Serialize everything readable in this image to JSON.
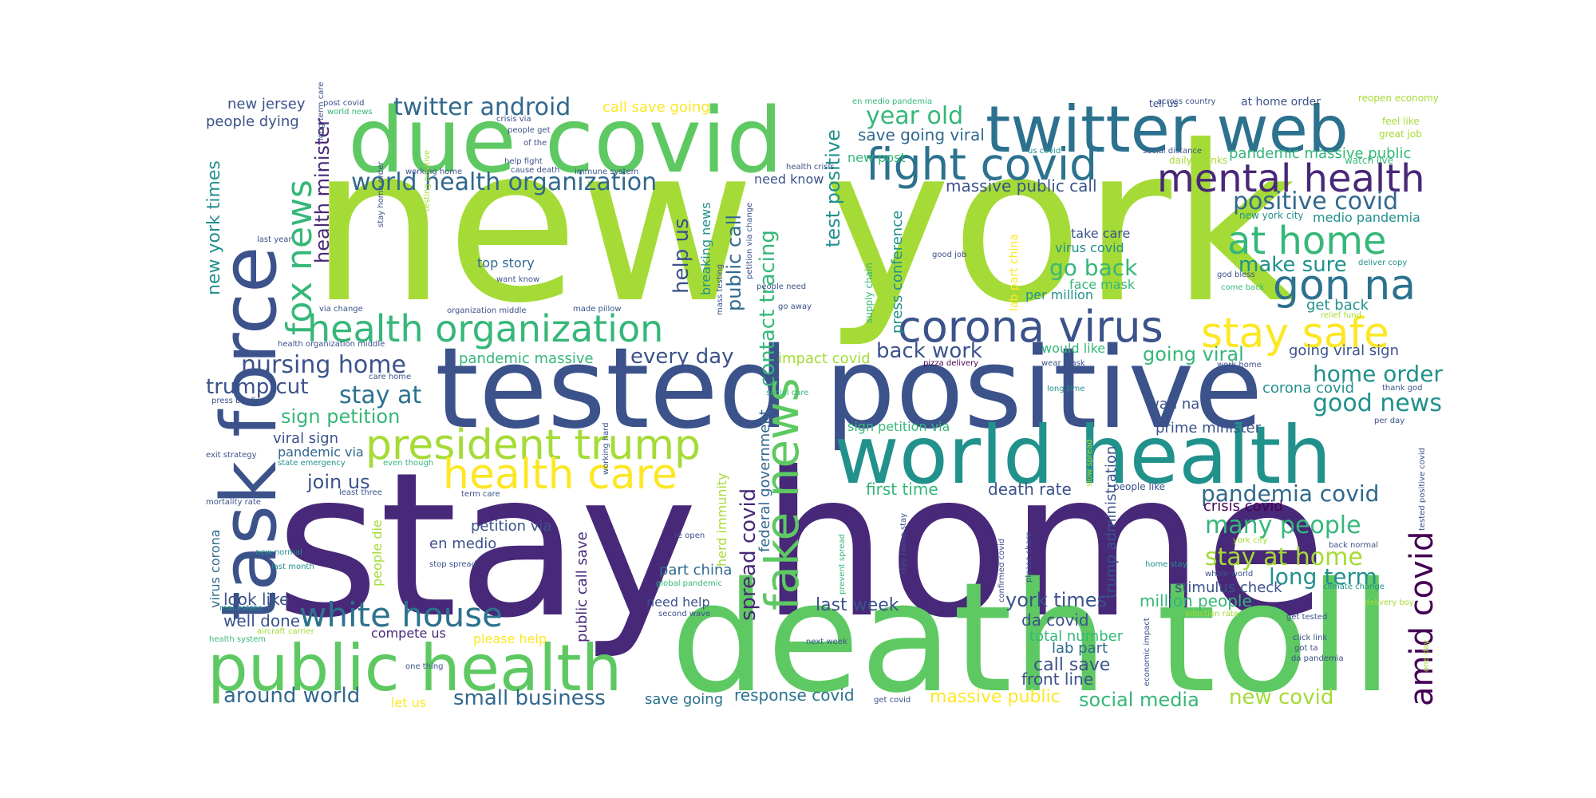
{
  "words": [
    {
      "text": "new york",
      "color": "#a5db36"
    },
    {
      "text": "stay home",
      "color": "#482878"
    },
    {
      "text": "death toll",
      "color": "#5ec962"
    },
    {
      "text": "tested positive",
      "color": "#3b528b"
    },
    {
      "text": "due covid",
      "color": "#5ec962"
    },
    {
      "text": "task force",
      "color": "#3b528b"
    },
    {
      "text": "twitter web",
      "color": "#2c728e"
    },
    {
      "text": "world health",
      "color": "#21918c"
    },
    {
      "text": "public health",
      "color": "#5ec962"
    },
    {
      "text": "fight covid",
      "color": "#2c728e"
    },
    {
      "text": "mental health",
      "color": "#482878"
    },
    {
      "text": "health organization",
      "color": "#35b779"
    },
    {
      "text": "corona virus",
      "color": "#3b528b"
    },
    {
      "text": "president trump",
      "color": "#a5db36"
    },
    {
      "text": "health care",
      "color": "#fde725"
    },
    {
      "text": "fake news",
      "color": "#5ec962"
    },
    {
      "text": "fox news",
      "color": "#35b779"
    },
    {
      "text": "stay safe",
      "color": "#fde725"
    },
    {
      "text": "gon na",
      "color": "#2c728e"
    },
    {
      "text": "at home",
      "color": "#35b779"
    },
    {
      "text": "white house",
      "color": "#2c728e"
    },
    {
      "text": "amid covid",
      "color": "#440154"
    },
    {
      "text": "world health organization",
      "color": "#31688e"
    },
    {
      "text": "positive covid",
      "color": "#31688e"
    },
    {
      "text": "twitter android",
      "color": "#31688e"
    },
    {
      "text": "nursing home",
      "color": "#3b528b"
    },
    {
      "text": "trump cut",
      "color": "#3b528b"
    },
    {
      "text": "stay at",
      "color": "#2c728e"
    },
    {
      "text": "sign petition",
      "color": "#35b779"
    },
    {
      "text": "year old",
      "color": "#35b779"
    },
    {
      "text": "pandemia covid",
      "color": "#31688e"
    },
    {
      "text": "many people",
      "color": "#35b779"
    },
    {
      "text": "stay at home",
      "color": "#a5db36"
    },
    {
      "text": "good news",
      "color": "#21918c"
    },
    {
      "text": "home order",
      "color": "#21918c"
    },
    {
      "text": "long term",
      "color": "#21918c"
    },
    {
      "text": "around world",
      "color": "#31688e"
    },
    {
      "text": "small business",
      "color": "#31688e"
    },
    {
      "text": "social media",
      "color": "#35b779"
    },
    {
      "text": "new covid",
      "color": "#a5db36"
    },
    {
      "text": "spread covid",
      "color": "#482878"
    },
    {
      "text": "contact tracing",
      "color": "#35b779"
    },
    {
      "text": "help us",
      "color": "#3b528b"
    },
    {
      "text": "public call",
      "color": "#31688e"
    },
    {
      "text": "health minister",
      "color": "#482878"
    },
    {
      "text": "new york times",
      "color": "#21918c"
    },
    {
      "text": "back work",
      "color": "#3b528b"
    },
    {
      "text": "make sure",
      "color": "#21918c"
    },
    {
      "text": "go back",
      "color": "#35b779"
    },
    {
      "text": "every day",
      "color": "#3b528b"
    },
    {
      "text": "join us",
      "color": "#3b528b"
    },
    {
      "text": "york times",
      "color": "#3b528b"
    },
    {
      "text": "last week",
      "color": "#3b528b"
    },
    {
      "text": "going viral",
      "color": "#35b779"
    },
    {
      "text": "test positive",
      "color": "#21918c"
    },
    {
      "text": "well done",
      "color": "#3b528b"
    },
    {
      "text": "look like",
      "color": "#3b528b"
    },
    {
      "text": "da covid",
      "color": "#3b528b"
    },
    {
      "text": "call save",
      "color": "#3b528b"
    },
    {
      "text": "front line",
      "color": "#3b528b"
    },
    {
      "text": "massive public",
      "color": "#fde725"
    },
    {
      "text": "response covid",
      "color": "#2c728e"
    },
    {
      "text": "save going",
      "color": "#2c728e"
    },
    {
      "text": "first time",
      "color": "#35b779"
    },
    {
      "text": "death rate",
      "color": "#3b528b"
    },
    {
      "text": "million people",
      "color": "#35b779"
    },
    {
      "text": "total number",
      "color": "#35b779"
    },
    {
      "text": "lab part",
      "color": "#31688e"
    },
    {
      "text": "crisis covid",
      "color": "#440154"
    },
    {
      "text": "stimulus check",
      "color": "#3b528b"
    },
    {
      "text": "wan na",
      "color": "#3b528b"
    },
    {
      "text": "corona covid",
      "color": "#21918c"
    },
    {
      "text": "prime minister",
      "color": "#3b528b"
    },
    {
      "text": "going viral sign",
      "color": "#3b528b"
    },
    {
      "text": "get back",
      "color": "#21918c"
    },
    {
      "text": "per million",
      "color": "#21918c"
    },
    {
      "text": "face mask",
      "color": "#35b779"
    },
    {
      "text": "virus covid",
      "color": "#21918c"
    },
    {
      "text": "take care",
      "color": "#3b528b"
    },
    {
      "text": "would like",
      "color": "#35b779"
    },
    {
      "text": "massive public call",
      "color": "#3b528b"
    },
    {
      "text": "save going viral",
      "color": "#31688e"
    },
    {
      "text": "need know",
      "color": "#3b528b"
    },
    {
      "text": "new post",
      "color": "#35b779"
    },
    {
      "text": "top story",
      "color": "#31688e"
    },
    {
      "text": "pandemic massive",
      "color": "#35b779"
    },
    {
      "text": "impact covid",
      "color": "#a5db36"
    },
    {
      "text": "people dying",
      "color": "#3b528b"
    },
    {
      "text": "new jersey",
      "color": "#3b528b"
    },
    {
      "text": "call save going",
      "color": "#fde725"
    },
    {
      "text": "pandemic massive public",
      "color": "#35b779"
    },
    {
      "text": "medio pandemia",
      "color": "#21918c"
    },
    {
      "text": "petition via",
      "color": "#3b528b"
    },
    {
      "text": "en medio",
      "color": "#3b528b"
    },
    {
      "text": "viral sign",
      "color": "#3b528b"
    },
    {
      "text": "pandemic via",
      "color": "#31688e"
    },
    {
      "text": "part china",
      "color": "#31688e"
    },
    {
      "text": "need help",
      "color": "#3b528b"
    },
    {
      "text": "compete us",
      "color": "#482878"
    },
    {
      "text": "please help",
      "color": "#fde725"
    },
    {
      "text": "let us",
      "color": "#fde725"
    },
    {
      "text": "virus corona",
      "color": "#31688e"
    },
    {
      "text": "people die",
      "color": "#a5db36"
    },
    {
      "text": "public call save",
      "color": "#482878"
    },
    {
      "text": "federal government",
      "color": "#31688e"
    },
    {
      "text": "herd immunity",
      "color": "#a5db36"
    },
    {
      "text": "breaking news",
      "color": "#21918c"
    },
    {
      "text": "press conference",
      "color": "#21918c"
    },
    {
      "text": "trump administration",
      "color": "#3b528b"
    },
    {
      "text": "lab part china",
      "color": "#fde725"
    },
    {
      "text": "supply chain",
      "color": "#35b779"
    },
    {
      "text": "tell us",
      "color": "#3b528b"
    },
    {
      "text": "at home order",
      "color": "#3b528b"
    },
    {
      "text": "reopen economy",
      "color": "#a5db36"
    },
    {
      "text": "feel like",
      "color": "#a5db36"
    },
    {
      "text": "great job",
      "color": "#a5db36"
    },
    {
      "text": "watch live",
      "color": "#35b779"
    },
    {
      "text": "new york city",
      "color": "#21918c"
    },
    {
      "text": "across country",
      "color": "#3b528b"
    },
    {
      "text": "social distance",
      "color": "#3b528b"
    },
    {
      "text": "daily thanks",
      "color": "#a5db36"
    },
    {
      "text": "us covid",
      "color": "#21918c"
    },
    {
      "text": "en medio pandemia",
      "color": "#35b779"
    },
    {
      "text": "health crisis",
      "color": "#3b528b"
    },
    {
      "text": "post covid",
      "color": "#3b528b"
    },
    {
      "text": "world news",
      "color": "#35b779"
    },
    {
      "text": "long term care",
      "color": "#3b528b"
    },
    {
      "text": "crisis via",
      "color": "#3b528b"
    },
    {
      "text": "people get",
      "color": "#3b528b"
    },
    {
      "text": "of the",
      "color": "#3b528b"
    },
    {
      "text": "help fight",
      "color": "#3b528b"
    },
    {
      "text": "cause death",
      "color": "#3b528b"
    },
    {
      "text": "immune system",
      "color": "#3b528b"
    },
    {
      "text": "working home",
      "color": "#3b528b"
    },
    {
      "text": "last year",
      "color": "#3b528b"
    },
    {
      "text": "stay home order",
      "color": "#3b528b"
    },
    {
      "text": "testing positive",
      "color": "#a5db36"
    },
    {
      "text": "want know",
      "color": "#3b528b"
    },
    {
      "text": "via change",
      "color": "#3b528b"
    },
    {
      "text": "organization middle",
      "color": "#3b528b"
    },
    {
      "text": "made pillow",
      "color": "#3b528b"
    },
    {
      "text": "health organization middle",
      "color": "#3b528b"
    },
    {
      "text": "care home",
      "color": "#3b528b"
    },
    {
      "text": "press briefing",
      "color": "#3b528b"
    },
    {
      "text": "exit strategy",
      "color": "#3b528b"
    },
    {
      "text": "state emergency",
      "color": "#21918c"
    },
    {
      "text": "even though",
      "color": "#35b779"
    },
    {
      "text": "least three",
      "color": "#3b528b"
    },
    {
      "text": "term care",
      "color": "#3b528b"
    },
    {
      "text": "mortality rate",
      "color": "#3b528b"
    },
    {
      "text": "new normal",
      "color": "#21918c"
    },
    {
      "text": "last month",
      "color": "#21918c"
    },
    {
      "text": "stop spread",
      "color": "#3b528b"
    },
    {
      "text": "global pandemic",
      "color": "#35b779"
    },
    {
      "text": "second wave",
      "color": "#3b528b"
    },
    {
      "text": "real estate",
      "color": "#21918c"
    },
    {
      "text": "health system",
      "color": "#35b779"
    },
    {
      "text": "aircraft carrier",
      "color": "#a5db36"
    },
    {
      "text": "one thing",
      "color": "#3b528b"
    },
    {
      "text": "re open",
      "color": "#3b528b"
    },
    {
      "text": "working hard",
      "color": "#3b528b"
    },
    {
      "text": "mass testing",
      "color": "#3b528b"
    },
    {
      "text": "petition via change",
      "color": "#3b528b"
    },
    {
      "text": "people need",
      "color": "#3b528b"
    },
    {
      "text": "go away",
      "color": "#3b528b"
    },
    {
      "text": "social care",
      "color": "#35b779"
    },
    {
      "text": "pizza delivery",
      "color": "#440154"
    },
    {
      "text": "wear mask",
      "color": "#3b528b"
    },
    {
      "text": "work home",
      "color": "#3b528b"
    },
    {
      "text": "long time",
      "color": "#21918c"
    },
    {
      "text": "sign petition via",
      "color": "#35b779"
    },
    {
      "text": "good job",
      "color": "#3b528b"
    },
    {
      "text": "god bless",
      "color": "#3b528b"
    },
    {
      "text": "deliver copy",
      "color": "#21918c"
    },
    {
      "text": "come back",
      "color": "#35b779"
    },
    {
      "text": "relief fund",
      "color": "#a5db36"
    },
    {
      "text": "thank god",
      "color": "#3b528b"
    },
    {
      "text": "per day",
      "color": "#3b528b"
    },
    {
      "text": "tested positive covid",
      "color": "#3b528b"
    },
    {
      "text": "slow spread",
      "color": "#a5db36"
    },
    {
      "text": "people like",
      "color": "#3b528b"
    },
    {
      "text": "york city",
      "color": "#a5db36"
    },
    {
      "text": "back normal",
      "color": "#3b528b"
    },
    {
      "text": "home stay",
      "color": "#21918c"
    },
    {
      "text": "whole world",
      "color": "#3b528b"
    },
    {
      "text": "climate change",
      "color": "#21918c"
    },
    {
      "text": "delivery boy",
      "color": "#a5db36"
    },
    {
      "text": "infection rate",
      "color": "#a5db36"
    },
    {
      "text": "get tested",
      "color": "#3b528b"
    },
    {
      "text": "click link",
      "color": "#3b528b"
    },
    {
      "text": "got ta",
      "color": "#3b528b"
    },
    {
      "text": "da pandemia",
      "color": "#3b528b"
    },
    {
      "text": "one day",
      "color": "#a5db36"
    },
    {
      "text": "prevent spread",
      "color": "#35b779"
    },
    {
      "text": "stay home stay",
      "color": "#3b528b"
    },
    {
      "text": "confirmed covid",
      "color": "#3b528b"
    },
    {
      "text": "please share",
      "color": "#3b528b"
    },
    {
      "text": "next week",
      "color": "#3b528b"
    },
    {
      "text": "economic impact",
      "color": "#3b528b"
    },
    {
      "text": "get covid",
      "color": "#3b528b"
    }
  ]
}
